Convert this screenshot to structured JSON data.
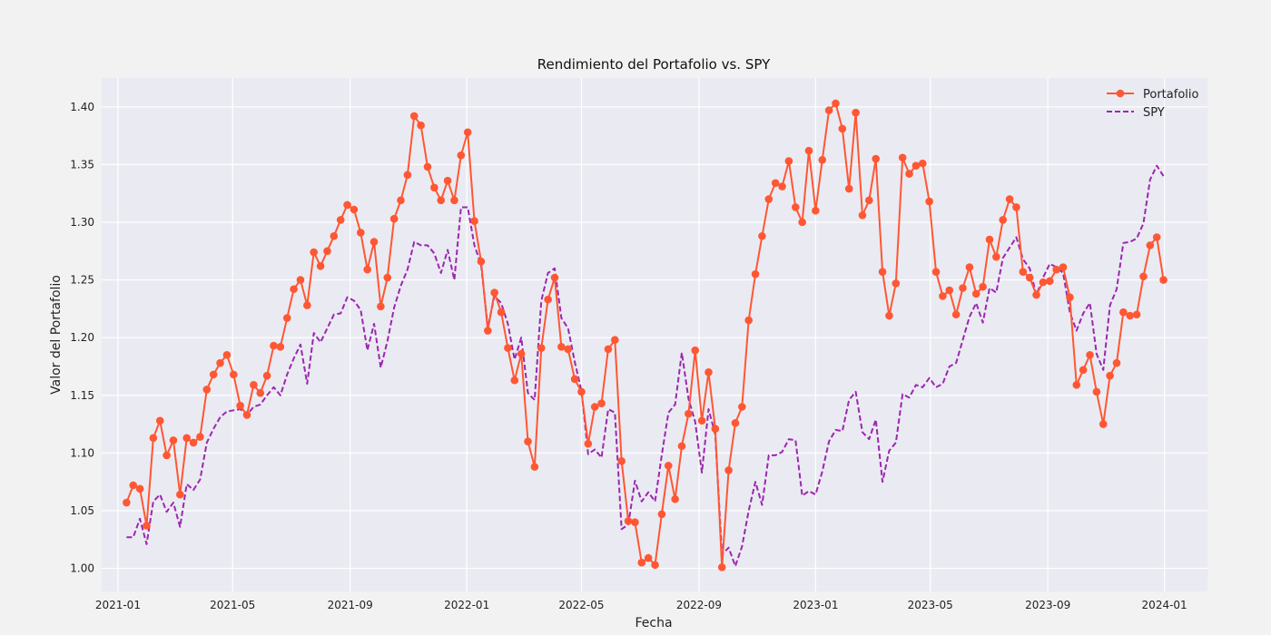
{
  "chart_data": {
    "type": "line",
    "title": "Rendimiento del Portafolio vs. SPY",
    "xlabel": "Fecha",
    "ylabel": "Valor del Portafolio",
    "xlim": [
      "2020-12-15",
      "2024-02-15"
    ],
    "ylim": [
      0.98,
      1.425
    ],
    "grid": true,
    "legend_position": "top-right",
    "x_ticks": [
      "2021-01",
      "2021-05",
      "2021-09",
      "2022-01",
      "2022-05",
      "2022-09",
      "2023-01",
      "2023-05",
      "2023-09",
      "2024-01"
    ],
    "y_ticks": [
      "1.00",
      "1.05",
      "1.10",
      "1.15",
      "1.20",
      "1.25",
      "1.30",
      "1.35",
      "1.40"
    ],
    "x_start": "2021-01-10",
    "x_step_days": 7,
    "series": [
      {
        "name": "Portafolio",
        "color": "#ff5733",
        "style": "solid-marker",
        "values": [
          1.057,
          1.072,
          1.069,
          1.037,
          1.113,
          1.128,
          1.098,
          1.111,
          1.064,
          1.113,
          1.109,
          1.114,
          1.155,
          1.168,
          1.178,
          1.185,
          1.168,
          1.141,
          1.133,
          1.159,
          1.152,
          1.167,
          1.193,
          1.192,
          1.217,
          1.242,
          1.25,
          1.228,
          1.274,
          1.262,
          1.275,
          1.288,
          1.302,
          1.315,
          1.311,
          1.291,
          1.259,
          1.283,
          1.227,
          1.252,
          1.303,
          1.319,
          1.341,
          1.392,
          1.384,
          1.348,
          1.33,
          1.319,
          1.336,
          1.319,
          1.358,
          1.378,
          1.301,
          1.266,
          1.206,
          1.239,
          1.222,
          1.191,
          1.163,
          1.186,
          1.11,
          1.088,
          1.191,
          1.233,
          1.252,
          1.192,
          1.19,
          1.164,
          1.153,
          1.108,
          1.14,
          1.143,
          1.19,
          1.198,
          1.093,
          1.041,
          1.04,
          1.005,
          1.009,
          1.003,
          1.047,
          1.089,
          1.06,
          1.106,
          1.134,
          1.189,
          1.128,
          1.17,
          1.121,
          1.001,
          1.085,
          1.126,
          1.14,
          1.215,
          1.255,
          1.288,
          1.32,
          1.334,
          1.331,
          1.353,
          1.313,
          1.3,
          1.362,
          1.31,
          1.354,
          1.397,
          1.403,
          1.381,
          1.329,
          1.395,
          1.306,
          1.319,
          1.355,
          1.257,
          1.219,
          1.247,
          1.356,
          1.342,
          1.349,
          1.351,
          1.318,
          1.257,
          1.236,
          1.241,
          1.22,
          1.243,
          1.261,
          1.238,
          1.244,
          1.285,
          1.27,
          1.302,
          1.32,
          1.313,
          1.257,
          1.252,
          1.237,
          1.248,
          1.249,
          1.259,
          1.261,
          1.235,
          1.159,
          1.172,
          1.185,
          1.153,
          1.125,
          1.167,
          1.178,
          1.222,
          1.219,
          1.22,
          1.253,
          1.28,
          1.287,
          1.25
        ]
      },
      {
        "name": "SPY",
        "color": "#9c27b0",
        "style": "dashed",
        "values": [
          1.027,
          1.027,
          1.043,
          1.021,
          1.058,
          1.064,
          1.049,
          1.057,
          1.036,
          1.073,
          1.068,
          1.077,
          1.109,
          1.121,
          1.131,
          1.136,
          1.137,
          1.138,
          1.133,
          1.14,
          1.142,
          1.15,
          1.157,
          1.15,
          1.168,
          1.182,
          1.194,
          1.16,
          1.204,
          1.196,
          1.208,
          1.22,
          1.221,
          1.235,
          1.232,
          1.224,
          1.189,
          1.212,
          1.174,
          1.197,
          1.226,
          1.245,
          1.259,
          1.283,
          1.28,
          1.28,
          1.273,
          1.256,
          1.276,
          1.25,
          1.313,
          1.313,
          1.28,
          1.263,
          1.209,
          1.236,
          1.23,
          1.212,
          1.181,
          1.2,
          1.152,
          1.146,
          1.232,
          1.256,
          1.26,
          1.217,
          1.208,
          1.179,
          1.154,
          1.099,
          1.103,
          1.096,
          1.138,
          1.135,
          1.034,
          1.038,
          1.076,
          1.058,
          1.066,
          1.058,
          1.098,
          1.135,
          1.142,
          1.187,
          1.147,
          1.127,
          1.083,
          1.138,
          1.116,
          1.012,
          1.018,
          1.002,
          1.019,
          1.05,
          1.075,
          1.055,
          1.098,
          1.098,
          1.101,
          1.112,
          1.111,
          1.063,
          1.067,
          1.064,
          1.084,
          1.11,
          1.12,
          1.119,
          1.146,
          1.153,
          1.118,
          1.112,
          1.129,
          1.075,
          1.102,
          1.109,
          1.151,
          1.148,
          1.159,
          1.157,
          1.165,
          1.157,
          1.16,
          1.175,
          1.178,
          1.198,
          1.218,
          1.23,
          1.213,
          1.243,
          1.239,
          1.269,
          1.278,
          1.287,
          1.268,
          1.26,
          1.237,
          1.252,
          1.264,
          1.261,
          1.256,
          1.222,
          1.206,
          1.221,
          1.23,
          1.186,
          1.172,
          1.228,
          1.242,
          1.282,
          1.283,
          1.286,
          1.299,
          1.337,
          1.349,
          1.34
        ]
      }
    ]
  }
}
